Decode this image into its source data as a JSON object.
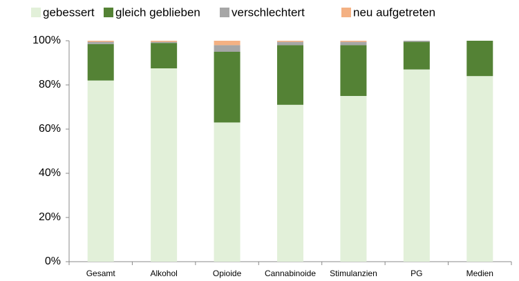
{
  "chart_data": {
    "type": "stacked_bar",
    "categories": [
      "Gesamt",
      "Alkohol",
      "Opioide",
      "Cannabinoide",
      "Stimulanzien",
      "PG",
      "Medien"
    ],
    "series": [
      {
        "name": "gebessert",
        "color": "#e2f0d9",
        "values": [
          82,
          87.5,
          63,
          71,
          75,
          87,
          84
        ]
      },
      {
        "name": "gleich geblieben",
        "color": "#548235",
        "values": [
          16.5,
          11.5,
          32,
          27,
          23,
          12.5,
          16
        ]
      },
      {
        "name": "verschlechtert",
        "color": "#a6a6a6",
        "values": [
          1,
          0.5,
          3,
          1.5,
          1.5,
          0.5,
          0
        ]
      },
      {
        "name": "neu aufgetreten",
        "color": "#f4b183",
        "values": [
          0.5,
          0.5,
          2,
          0.5,
          0.5,
          0,
          0
        ]
      }
    ],
    "ylim": [
      0,
      100
    ],
    "yticks": [
      {
        "value": 0,
        "label": "0%"
      },
      {
        "value": 20,
        "label": "20%"
      },
      {
        "value": 40,
        "label": "40%"
      },
      {
        "value": 60,
        "label": "60%"
      },
      {
        "value": 80,
        "label": "80%"
      },
      {
        "value": 100,
        "label": "100%"
      }
    ],
    "legend": "top"
  }
}
